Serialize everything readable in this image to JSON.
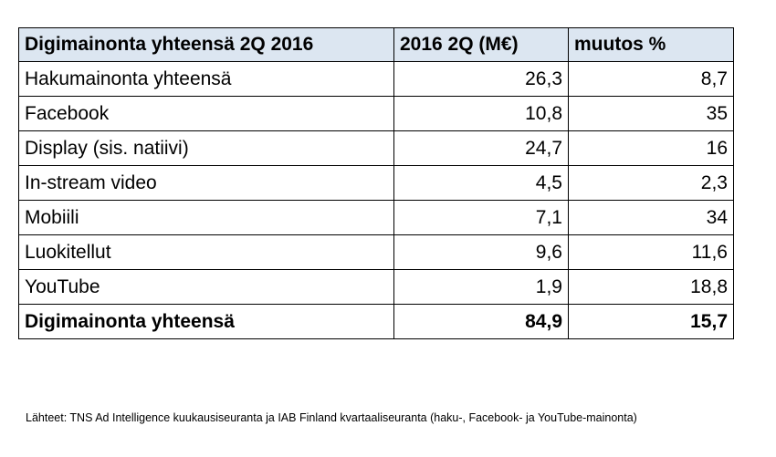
{
  "table": {
    "header": [
      "Digimainonta yhteensä 2Q  2016",
      "2016 2Q (M€)",
      "muutos %"
    ],
    "rows": [
      [
        "Hakumainonta yhteensä",
        "26,3",
        "8,7"
      ],
      [
        "Facebook",
        "10,8",
        "35"
      ],
      [
        "Display (sis. natiivi)",
        "24,7",
        "16"
      ],
      [
        "In-stream video",
        "4,5",
        "2,3"
      ],
      [
        "Mobiili",
        "7,1",
        "34"
      ],
      [
        "Luokitellut",
        "9,6",
        "11,6"
      ],
      [
        "YouTube",
        "1,9",
        "18,8"
      ],
      [
        "Digimainonta yhteensä",
        "84,9",
        "15,7"
      ]
    ]
  },
  "footer": {
    "source": "Lähteet: TNS Ad Intelligence kuukausiseuranta ja IAB Finland kvartaaliseuranta (haku-, Facebook- ja YouTube-mainonta)"
  }
}
